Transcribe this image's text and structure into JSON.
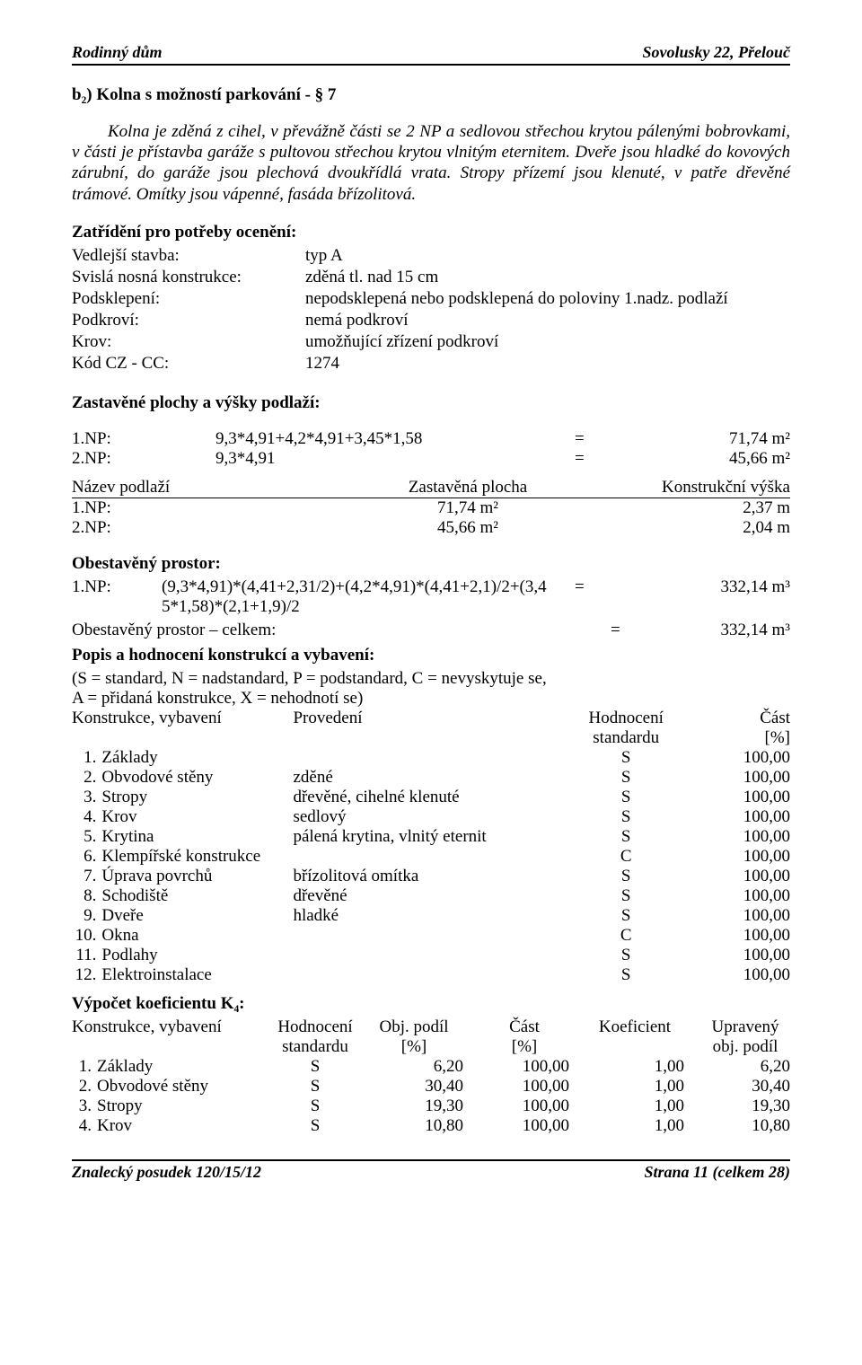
{
  "header": {
    "left": "Rodinný dům",
    "right": "Sovolusky 22, Přelouč"
  },
  "section_title": "b₂) Kolna s možností parkování - § 7",
  "paragraph": "Kolna je zděná z cihel, v převážně části se 2 NP a sedlovou střechou krytou pálenými bobrovkami, v části je přístavba garáže s pultovou střechou krytou vlnitým eternitem. Dveře jsou hladké do kovových zárubní, do garáže jsou plechová dvoukřídlá vrata. Stropy přízemí jsou klenuté, v patře dřevěné trámové. Omítky jsou vápenné, fasáda břízolitová.",
  "zatrideni_heading": "Zatřídění pro potřeby ocenění:",
  "zatrideni": [
    {
      "k": "Vedlejší stavba:",
      "v": "typ A"
    },
    {
      "k": "Svislá nosná konstrukce:",
      "v": "zděná tl. nad 15 cm"
    },
    {
      "k": "Podsklepení:",
      "v": "nepodsklepená nebo podsklepená do poloviny 1.nadz. podlaží"
    },
    {
      "k": "Podkroví:",
      "v": "nemá podkroví"
    },
    {
      "k": "Krov:",
      "v": "umožňující zřízení podkroví"
    },
    {
      "k": "Kód CZ - CC:",
      "v": "1274"
    }
  ],
  "zastavene_heading": "Zastavěné plochy a výšky podlaží:",
  "zastavene_rows": [
    {
      "label": "1.NP:",
      "expr": "9,3*4,91+4,2*4,91+3,45*1,58",
      "eq": "=",
      "val": "71,74 m²"
    },
    {
      "label": "2.NP:",
      "expr": "9,3*4,91",
      "eq": "=",
      "val": "45,66 m²"
    }
  ],
  "nazev_header": [
    "Název podlaží",
    "Zastavěná plocha",
    "Konstrukční výška"
  ],
  "nazev_rows": [
    {
      "c1": "1.NP:",
      "c2": "71,74 m²",
      "c3": "2,37 m"
    },
    {
      "c1": "2.NP:",
      "c2": "45,66 m²",
      "c3": "2,04 m"
    }
  ],
  "obest_heading": "Obestavěný prostor:",
  "obest_rows": [
    {
      "c1": "1.NP:",
      "c2a": "(9,3*4,91)*(4,41+2,31/2)+(4,2*4,91)*(4,41+2,1)/2+(3,4",
      "c2b": "5*1,58)*(2,1+1,9)/2",
      "c3": "=",
      "c4": "332,14 m³"
    }
  ],
  "obest_total": {
    "label": "Obestavěný prostor – celkem:",
    "eq": "=",
    "val": "332,14 m³"
  },
  "popis_heading": "Popis a hodnocení konstrukcí a vybavení:",
  "popis_legend1": "(S = standard, N = nadstandard, P = podstandard, C = nevyskytuje se,",
  "popis_legend2": "A = přidaná konstrukce, X = nehodnotí se)",
  "konst_header": [
    "Konstrukce, vybavení",
    "Provedení",
    "Hodnocení standardu",
    "Část [%]"
  ],
  "konst_header_l1": {
    "c1": "Konstrukce, vybavení",
    "c2": "Provedení",
    "c3": "Hodnocení",
    "c4": "Část"
  },
  "konst_header_l2": {
    "c3": "standardu",
    "c4": "[%]"
  },
  "konst_rows": [
    {
      "n": "1.",
      "name": "Základy",
      "prov": "",
      "h": "S",
      "p": "100,00"
    },
    {
      "n": "2.",
      "name": "Obvodové stěny",
      "prov": "zděné",
      "h": "S",
      "p": "100,00"
    },
    {
      "n": "3.",
      "name": "Stropy",
      "prov": "dřevěné, cihelné klenuté",
      "h": "S",
      "p": "100,00"
    },
    {
      "n": "4.",
      "name": "Krov",
      "prov": "sedlový",
      "h": "S",
      "p": "100,00"
    },
    {
      "n": "5.",
      "name": "Krytina",
      "prov": "pálená krytina, vlnitý eternit",
      "h": "S",
      "p": "100,00"
    },
    {
      "n": "6.",
      "name": "Klempířské konstrukce",
      "prov": "",
      "h": "C",
      "p": "100,00"
    },
    {
      "n": "7.",
      "name": "Úprava povrchů",
      "prov": "břízolitová omítka",
      "h": "S",
      "p": "100,00"
    },
    {
      "n": "8.",
      "name": "Schodiště",
      "prov": "dřevěné",
      "h": "S",
      "p": "100,00"
    },
    {
      "n": "9.",
      "name": "Dveře",
      "prov": "hladké",
      "h": "S",
      "p": "100,00"
    },
    {
      "n": "10.",
      "name": "Okna",
      "prov": "",
      "h": "C",
      "p": "100,00"
    },
    {
      "n": "11.",
      "name": "Podlahy",
      "prov": "",
      "h": "S",
      "p": "100,00"
    },
    {
      "n": "12.",
      "name": "Elektroinstalace",
      "prov": "",
      "h": "S",
      "p": "100,00"
    }
  ],
  "koef_heading": "Výpočet koeficientu K₄:",
  "koef_header_l1": {
    "d1": "Konstrukce, vybavení",
    "d2": "Hodnocení",
    "d3": "Obj. podíl",
    "d4": "Část",
    "d5": "Koeficient",
    "d6": "Upravený"
  },
  "koef_header_l2": {
    "d2": "standardu",
    "d3": "[%]",
    "d4": "[%]",
    "d6": "obj. podíl"
  },
  "koef_rows": [
    {
      "n": "1.",
      "name": "Základy",
      "h": "S",
      "op": "6,20",
      "c": "100,00",
      "k": "1,00",
      "u": "6,20"
    },
    {
      "n": "2.",
      "name": "Obvodové stěny",
      "h": "S",
      "op": "30,40",
      "c": "100,00",
      "k": "1,00",
      "u": "30,40"
    },
    {
      "n": "3.",
      "name": "Stropy",
      "h": "S",
      "op": "19,30",
      "c": "100,00",
      "k": "1,00",
      "u": "19,30"
    },
    {
      "n": "4.",
      "name": "Krov",
      "h": "S",
      "op": "10,80",
      "c": "100,00",
      "k": "1,00",
      "u": "10,80"
    }
  ],
  "footer": {
    "left": "Znalecký posudek  120/15/12",
    "right": "Strana 11 (celkem 28)"
  }
}
